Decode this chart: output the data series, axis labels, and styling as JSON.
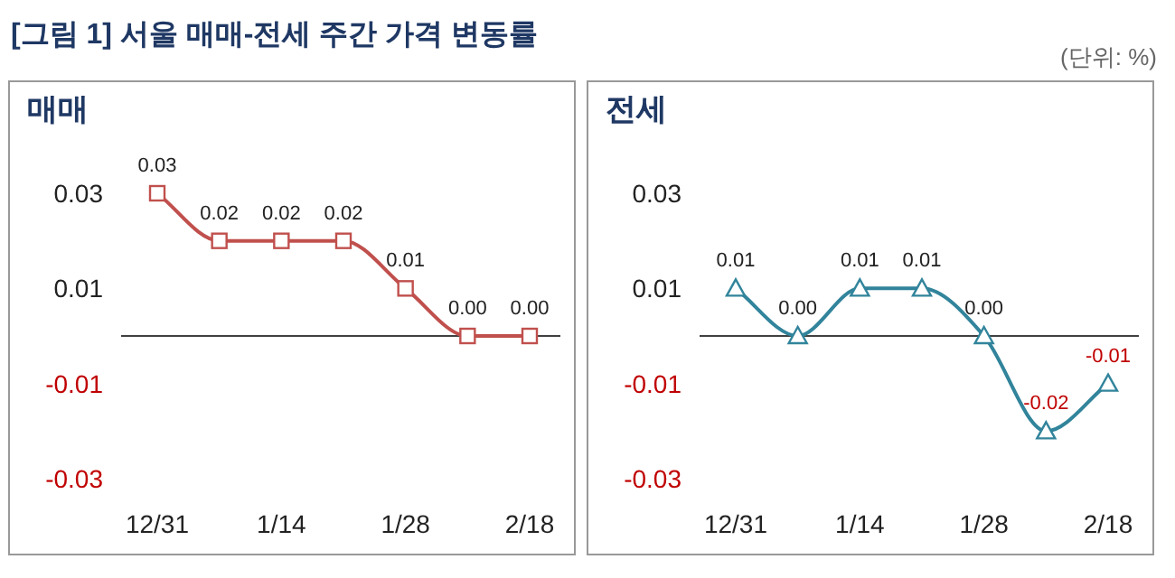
{
  "chart_data": [
    {
      "type": "line",
      "title": "매매",
      "annotations": [
        "[그림 1] 서울 매매-전세 주간 가격 변동률",
        "(단위: %)"
      ],
      "categories": [
        "12/31",
        null,
        "1/14",
        null,
        "1/28",
        null,
        "2/18"
      ],
      "series": [
        {
          "color": "#c0504d",
          "values": [
            0.03,
            0.02,
            0.02,
            0.02,
            0.01,
            0.0,
            0.0
          ],
          "value_labels": [
            "0.03",
            "0.02",
            "0.02",
            "0.02",
            "0.01",
            "0.00",
            "0.00"
          ]
        }
      ],
      "ylim": [
        -0.03,
        0.03
      ],
      "yticks": [
        0.03,
        0.01,
        -0.01,
        -0.03
      ],
      "marker": "square",
      "line_style": "solid",
      "ref_lines": [
        {
          "axis": "y",
          "value": 0,
          "color": "#404040"
        }
      ]
    },
    {
      "type": "line",
      "title": "전세",
      "categories": [
        "12/31",
        null,
        "1/14",
        null,
        "1/28",
        null,
        "2/18"
      ],
      "series": [
        {
          "color": "#31849b",
          "values": [
            0.01,
            0.0,
            0.01,
            0.01,
            0.0,
            -0.02,
            -0.01
          ],
          "value_labels": [
            "0.01",
            "0.00",
            "0.01",
            "0.01",
            "0.00",
            "-0.02",
            "-0.01"
          ]
        }
      ],
      "ylim": [
        -0.03,
        0.03
      ],
      "yticks": [
        0.03,
        0.01,
        -0.01,
        -0.03
      ],
      "marker": "triangle",
      "line_style": "solid",
      "ref_lines": [
        {
          "axis": "y",
          "value": 0,
          "color": "#404040"
        }
      ]
    }
  ]
}
